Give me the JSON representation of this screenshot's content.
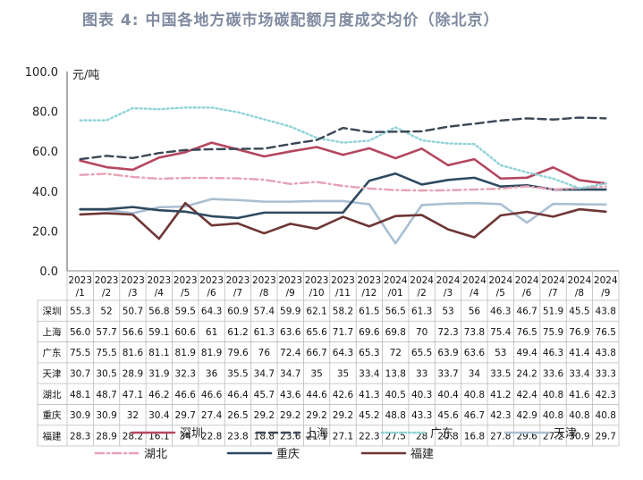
{
  "title": "图表 4:  中国各地方碳市场碳配额月度成交均价（除北京）",
  "chart_data": {
    "type": "line",
    "title": "图表 4:  中国各地方碳市场碳配额月度成交均价（除北京）",
    "ylabel": "元/吨",
    "ylim": [
      0,
      100
    ],
    "yticks": [
      "0.0",
      "20.0",
      "40.0",
      "60.0",
      "80.0",
      "100.0"
    ],
    "grid": false,
    "legend_placement": "bottom",
    "categories": [
      "2023/1",
      "2023/2",
      "2023/3",
      "2023/4",
      "2023/5",
      "2023/6",
      "2023/7",
      "2023/8",
      "2023/9",
      "2023/10",
      "2023/11",
      "2023/12",
      "2024/01",
      "2024/2",
      "2024/3",
      "2024/4",
      "2024/5",
      "2024/6",
      "2024/7",
      "2024/8",
      "2024/9"
    ],
    "category_lines": [
      [
        "2023",
        "/1"
      ],
      [
        "2023",
        "/2"
      ],
      [
        "2023",
        "/3"
      ],
      [
        "2023",
        "/4"
      ],
      [
        "2023",
        "/5"
      ],
      [
        "2023",
        "/6"
      ],
      [
        "2023",
        "/7"
      ],
      [
        "2023",
        "/8"
      ],
      [
        "2023",
        "/9"
      ],
      [
        "2023",
        "/10"
      ],
      [
        "2023",
        "/11"
      ],
      [
        "2023",
        "/12"
      ],
      [
        "2024",
        "/01"
      ],
      [
        "2024",
        "/2"
      ],
      [
        "2024",
        "/3"
      ],
      [
        "2024",
        "/4"
      ],
      [
        "2024",
        "/5"
      ],
      [
        "2024",
        "/6"
      ],
      [
        "2024",
        "/7"
      ],
      [
        "2024",
        "/8"
      ],
      [
        "2024",
        "/9"
      ]
    ],
    "series": [
      {
        "name": "深圳",
        "color": "#b5475f",
        "style": "solid",
        "values": [
          55.3,
          52,
          50.7,
          56.8,
          59.5,
          64.3,
          60.9,
          57.4,
          59.9,
          62.1,
          58.2,
          61.5,
          56.5,
          61.3,
          53,
          56,
          46.3,
          46.7,
          51.9,
          45.5,
          43.8
        ],
        "labels": [
          "55.3",
          "52",
          "50.7",
          "56.8",
          "59.5",
          "64.3",
          "60.9",
          "57.4",
          "59.9",
          "62.1",
          "58.2",
          "61.5",
          "56.5",
          "61.3",
          "53",
          "56",
          "46.3",
          "46.7",
          "51.9",
          "45.5",
          "43.8"
        ]
      },
      {
        "name": "上海",
        "color": "#3b4656",
        "style": "dashed",
        "values": [
          56.0,
          57.7,
          56.6,
          59.1,
          60.6,
          61,
          61.2,
          61.3,
          63.6,
          65.6,
          71.7,
          69.6,
          69.8,
          70,
          72.3,
          73.8,
          75.4,
          76.5,
          75.9,
          76.9,
          76.5
        ],
        "labels": [
          "56.0",
          "57.7",
          "56.6",
          "59.1",
          "60.6",
          "61",
          "61.2",
          "61.3",
          "63.6",
          "65.6",
          "71.7",
          "69.6",
          "69.8",
          "70",
          "72.3",
          "73.8",
          "75.4",
          "76.5",
          "75.9",
          "76.9",
          "76.5"
        ]
      },
      {
        "name": "广东",
        "color": "#8fd3d6",
        "style": "dotted",
        "values": [
          75.5,
          75.5,
          81.6,
          81.1,
          81.9,
          81.9,
          79.6,
          76,
          72.4,
          66.7,
          64.3,
          65.3,
          72,
          65.5,
          63.9,
          63.6,
          53,
          49.4,
          46.3,
          41.4,
          43.8
        ],
        "labels": [
          "75.5",
          "75.5",
          "81.6",
          "81.1",
          "81.9",
          "81.9",
          "79.6",
          "76",
          "72.4",
          "66.7",
          "64.3",
          "65.3",
          "72",
          "65.5",
          "63.9",
          "63.6",
          "53",
          "49.4",
          "46.3",
          "41.4",
          "43.8"
        ]
      },
      {
        "name": "天津",
        "color": "#a9bfd2",
        "style": "solid",
        "values": [
          30.7,
          30.5,
          28.9,
          31.9,
          32.3,
          36,
          35.5,
          34.7,
          34.7,
          35,
          35,
          33.4,
          13.8,
          33,
          33.7,
          34,
          33.5,
          24.2,
          33.6,
          33.4,
          33.3
        ],
        "labels": [
          "30.7",
          "30.5",
          "28.9",
          "31.9",
          "32.3",
          "36",
          "35.5",
          "34.7",
          "34.7",
          "35",
          "35",
          "33.4",
          "13.8",
          "33",
          "33.7",
          "34",
          "33.5",
          "24.2",
          "33.6",
          "33.4",
          "33.3"
        ]
      },
      {
        "name": "湖北",
        "color": "#e6a2b4",
        "style": "dashdot",
        "values": [
          48.1,
          48.7,
          47.1,
          46.2,
          46.6,
          46.6,
          46.4,
          45.7,
          43.6,
          44.6,
          42.6,
          41.3,
          40.5,
          40.3,
          40.4,
          40.8,
          41.2,
          42.4,
          40.8,
          41.6,
          42.3
        ],
        "labels": [
          "48.1",
          "48.7",
          "47.1",
          "46.2",
          "46.6",
          "46.6",
          "46.4",
          "45.7",
          "43.6",
          "44.6",
          "42.6",
          "41.3",
          "40.5",
          "40.3",
          "40.4",
          "40.8",
          "41.2",
          "42.4",
          "40.8",
          "41.6",
          "42.3"
        ]
      },
      {
        "name": "重庆",
        "color": "#2f4a60",
        "style": "solid",
        "values": [
          30.9,
          30.9,
          32,
          30.4,
          29.7,
          27.4,
          26.5,
          29.2,
          29.2,
          29.2,
          29.2,
          45.2,
          48.8,
          43.3,
          45.6,
          46.7,
          42.3,
          42.9,
          40.8,
          40.8,
          40.8
        ],
        "labels": [
          "30.9",
          "30.9",
          "32",
          "30.4",
          "29.7",
          "27.4",
          "26.5",
          "29.2",
          "29.2",
          "29.2",
          "29.2",
          "45.2",
          "48.8",
          "43.3",
          "45.6",
          "46.7",
          "42.3",
          "42.9",
          "40.8",
          "40.8",
          "40.8"
        ]
      },
      {
        "name": "福建",
        "color": "#6e3535",
        "style": "solid",
        "values": [
          28.3,
          28.9,
          28.2,
          16.1,
          34,
          22.8,
          23.8,
          18.8,
          23.6,
          21.1,
          27.1,
          22.3,
          27.5,
          28,
          20.8,
          16.8,
          27.8,
          29.6,
          27.2,
          30.9,
          29.7
        ],
        "labels": [
          "28.3",
          "28.9",
          "28.2",
          "16.1",
          "34",
          "22.8",
          "23.8",
          "18.8",
          "23.6",
          "21.1",
          "27.1",
          "22.3",
          "27.5",
          "28",
          "20.8",
          "16.8",
          "27.8",
          "29.6",
          "27.2",
          "30.9",
          "29.7"
        ]
      }
    ]
  }
}
